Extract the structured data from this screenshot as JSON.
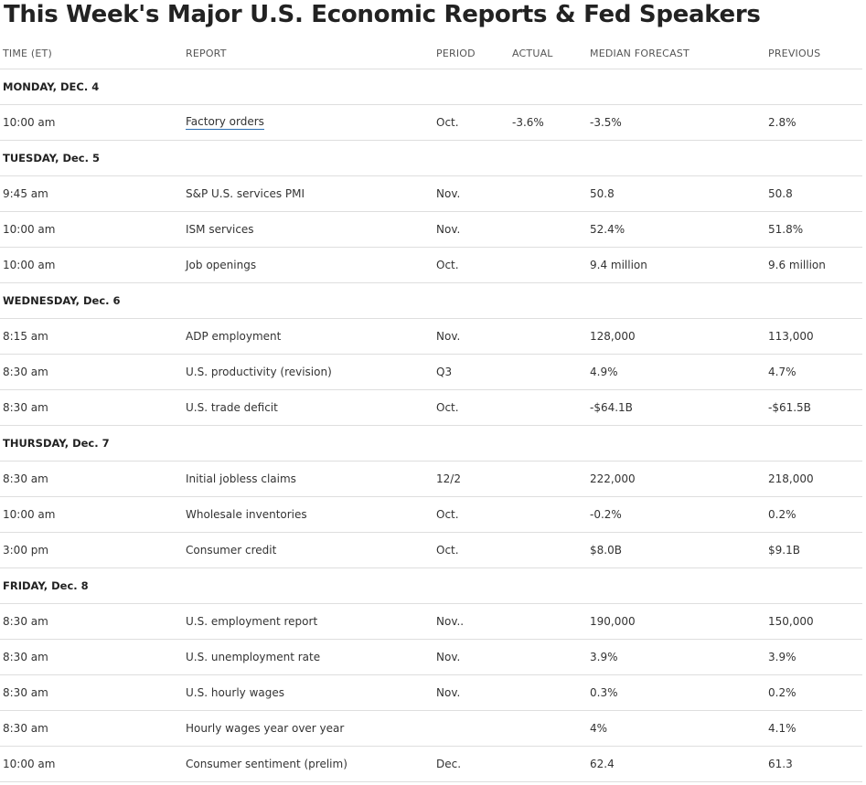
{
  "title": "This Week's Major U.S. Economic Reports & Fed Speakers",
  "columns": {
    "time": "TIME (ET)",
    "report": "REPORT",
    "period": "PERIOD",
    "actual": "ACTUAL",
    "median": "MEDIAN FORECAST",
    "previous": "PREVIOUS"
  },
  "days": [
    {
      "label": "MONDAY, DEC. 4",
      "rows": [
        {
          "time": "10:00 am",
          "report": "Factory orders",
          "period": "Oct.",
          "actual": "-3.6%",
          "median": "-3.5%",
          "previous": "2.8%",
          "link": true
        }
      ]
    },
    {
      "label": "TUESDAY, Dec. 5",
      "rows": [
        {
          "time": "9:45 am",
          "report": "S&P U.S. services PMI",
          "period": "Nov.",
          "actual": "",
          "median": "50.8",
          "previous": "50.8"
        },
        {
          "time": "10:00 am",
          "report": "ISM services",
          "period": "Nov.",
          "actual": "",
          "median": "52.4%",
          "previous": "51.8%"
        },
        {
          "time": "10:00 am",
          "report": "Job openings",
          "period": "Oct.",
          "actual": "",
          "median": "9.4 million",
          "previous": "9.6 million"
        }
      ]
    },
    {
      "label": "WEDNESDAY, Dec. 6",
      "rows": [
        {
          "time": "8:15 am",
          "report": "ADP employment",
          "period": "Nov.",
          "actual": "",
          "median": "128,000",
          "previous": "113,000"
        },
        {
          "time": "8:30 am",
          "report": "U.S. productivity (revision)",
          "period": "Q3",
          "actual": "",
          "median": "4.9%",
          "previous": "4.7%"
        },
        {
          "time": "8:30 am",
          "report": "U.S. trade deficit",
          "period": "Oct.",
          "actual": "",
          "median": "-$64.1B",
          "previous": "-$61.5B"
        }
      ]
    },
    {
      "label": "THURSDAY, Dec. 7",
      "rows": [
        {
          "time": "8:30 am",
          "report": "Initial jobless claims",
          "period": "12/2",
          "actual": "",
          "median": "222,000",
          "previous": "218,000"
        },
        {
          "time": "10:00 am",
          "report": "Wholesale inventories",
          "period": "Oct.",
          "actual": "",
          "median": "-0.2%",
          "previous": "0.2%"
        },
        {
          "time": "3:00 pm",
          "report": "Consumer credit",
          "period": "Oct.",
          "actual": "",
          "median": "$8.0B",
          "previous": "$9.1B"
        }
      ]
    },
    {
      "label": "FRIDAY, Dec. 8",
      "rows": [
        {
          "time": "8:30 am",
          "report": "U.S. employment report",
          "period": "Nov..",
          "actual": "",
          "median": "190,000",
          "previous": "150,000"
        },
        {
          "time": "8:30 am",
          "report": "U.S. unemployment rate",
          "period": "Nov.",
          "actual": "",
          "median": "3.9%",
          "previous": "3.9%"
        },
        {
          "time": "8:30 am",
          "report": "U.S. hourly wages",
          "period": "Nov.",
          "actual": "",
          "median": "0.3%",
          "previous": "0.2%"
        },
        {
          "time": "8:30 am",
          "report": "Hourly wages year over year",
          "period": "",
          "actual": "",
          "median": "4%",
          "previous": "4.1%"
        },
        {
          "time": "10:00 am",
          "report": "Consumer sentiment (prelim)",
          "period": "Dec.",
          "actual": "",
          "median": "62.4",
          "previous": "61.3"
        }
      ]
    }
  ]
}
